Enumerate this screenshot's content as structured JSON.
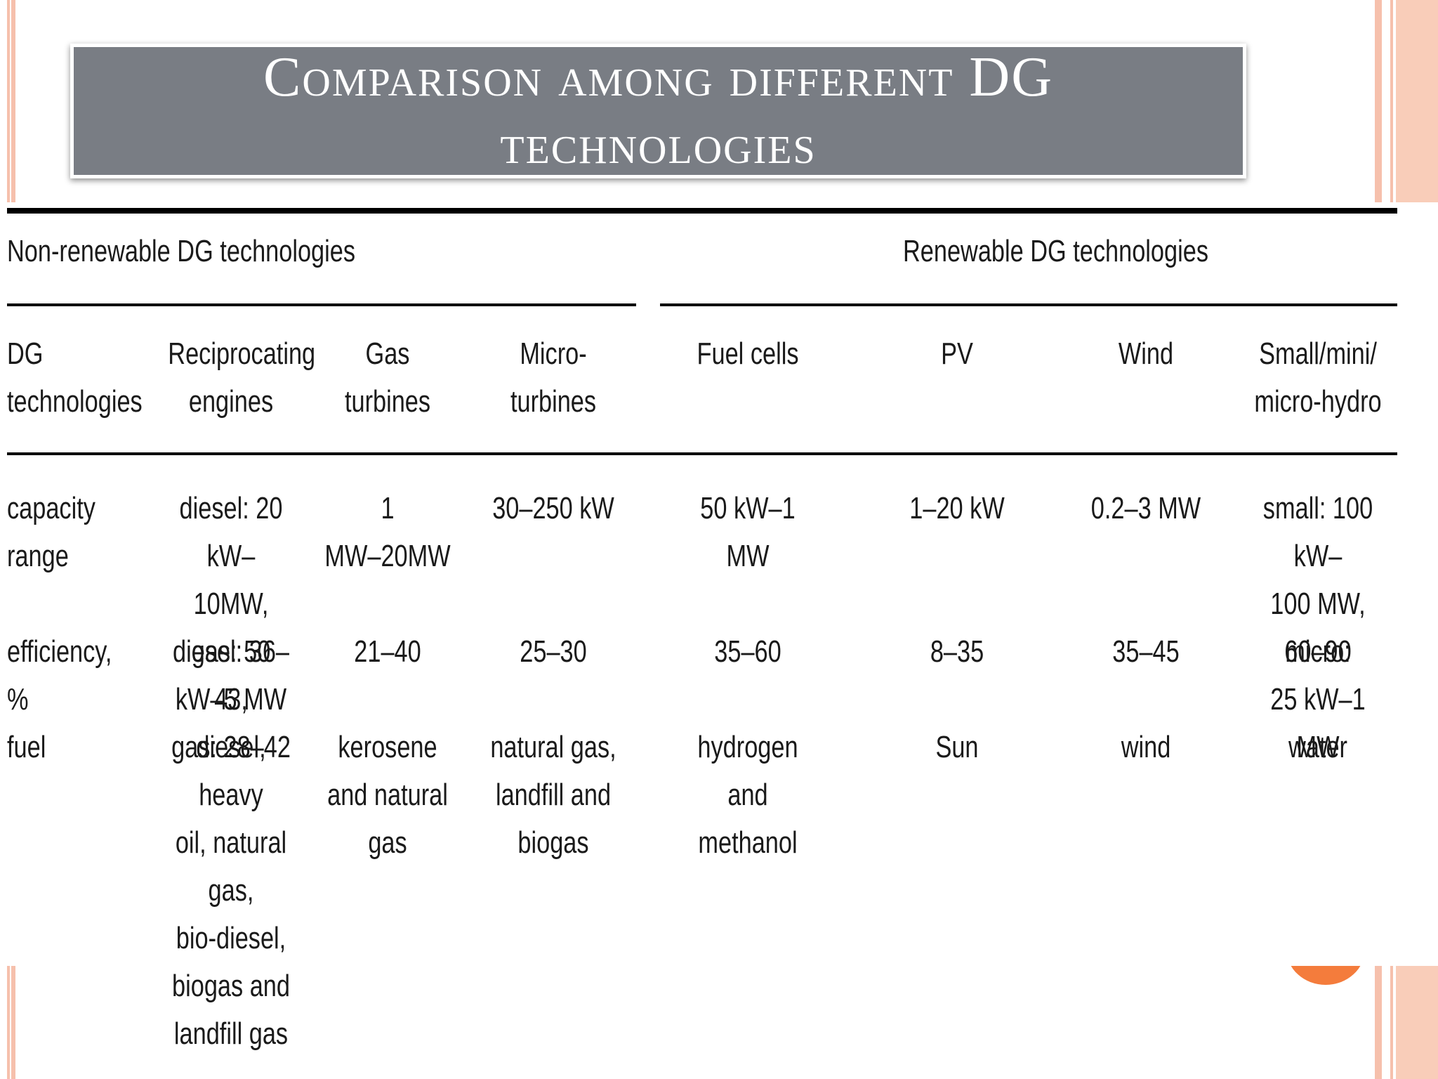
{
  "title": {
    "line1": "Comparison among different DG",
    "line2": "technologies"
  },
  "table": {
    "group_nonrenewable": "Non-renewable DG technologies",
    "group_renewable": "Renewable DG technologies",
    "header": {
      "row_label": [
        "DG",
        "technologies"
      ],
      "recip": [
        "Reciprocating",
        "engines"
      ],
      "gas": [
        "Gas turbines"
      ],
      "micro": [
        "Micro-turbines"
      ],
      "fuelcells": [
        "Fuel cells"
      ],
      "pv": [
        "PV"
      ],
      "wind": [
        "Wind"
      ],
      "hydro": [
        "Small/mini/",
        "micro-hydro"
      ]
    },
    "capacity": {
      "label": [
        "capacity",
        "range"
      ],
      "recip": [
        "diesel: 20 kW–",
        "10MW, gas: 50",
        "kW–5 MW"
      ],
      "gas": [
        "1",
        "MW–20MW"
      ],
      "micro": [
        "30–250 kW"
      ],
      "fuelcells": [
        "50 kW–1 MW"
      ],
      "pv": [
        "1–20 kW"
      ],
      "wind": [
        "0.2–3 MW"
      ],
      "hydro": [
        "small: 100 kW–",
        "100 MW, micro:",
        "25 kW–1 MW"
      ]
    },
    "efficiency": {
      "label": [
        "efficiency, %"
      ],
      "recip": [
        "diesel: 36–43,",
        "gas: 28–42"
      ],
      "gas": [
        "21–40"
      ],
      "micro": [
        "25–30"
      ],
      "fuelcells": [
        "35–60"
      ],
      "pv": [
        "8–35"
      ],
      "wind": [
        "35–45"
      ],
      "hydro": [
        "60–90"
      ]
    },
    "fuel": {
      "label": [
        "fuel"
      ],
      "recip": [
        "diesel, heavy",
        "oil, natural gas,",
        "bio-diesel,",
        "biogas and",
        "landfill gas"
      ],
      "gas": [
        "kerosene",
        "and natural",
        "gas"
      ],
      "micro": [
        "natural gas,",
        "landfill and",
        "biogas"
      ],
      "fuelcells": [
        "hydrogen and",
        "methanol"
      ],
      "pv": [
        "Sun"
      ],
      "wind": [
        "wind"
      ],
      "hydro": [
        "water"
      ]
    }
  }
}
